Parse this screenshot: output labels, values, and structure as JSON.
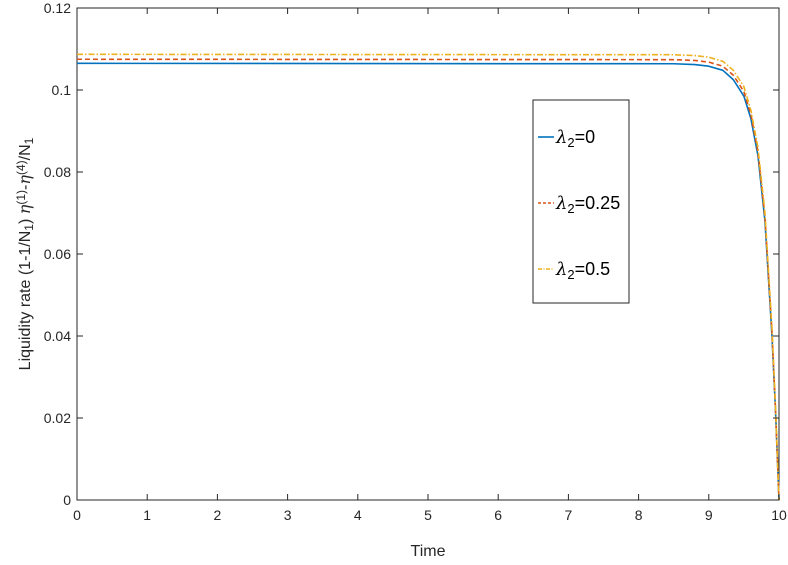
{
  "chart_data": {
    "type": "line",
    "xlabel": "Time",
    "ylabel": {
      "prefix": "Liquidity rate  (1-1/N",
      "sub1": "1",
      "mid1": ") ",
      "eta1": "η",
      "sup1": "(1)",
      "mid2": "-",
      "eta2": "η",
      "sup2": "(4)",
      "mid3": "/N",
      "sub2": "1"
    },
    "xlim": [
      0,
      10
    ],
    "ylim": [
      0,
      0.12
    ],
    "xticks": [
      0,
      1,
      2,
      3,
      4,
      5,
      6,
      7,
      8,
      9,
      10
    ],
    "yticks": [
      0,
      0.02,
      0.04,
      0.06,
      0.08,
      0.1,
      0.12
    ],
    "xtick_labels": [
      "0",
      "1",
      "2",
      "3",
      "4",
      "5",
      "6",
      "7",
      "8",
      "9",
      "10"
    ],
    "ytick_labels": [
      "0",
      "0.02",
      "0.04",
      "0.06",
      "0.08",
      "0.1",
      "0.12"
    ],
    "grid": false,
    "legend_position": "center-right",
    "series": [
      {
        "name": "λ2=0",
        "legend_sym": "λ",
        "legend_sub": "2",
        "legend_val": "=0",
        "color": "#0072BD",
        "style": "solid",
        "plateau": 0.1065,
        "x": [
          0,
          8.5,
          8.8,
          9.0,
          9.2,
          9.35,
          9.5,
          9.6,
          9.7,
          9.8,
          9.9,
          9.95,
          10
        ],
        "y": [
          0.1065,
          0.1064,
          0.1062,
          0.1058,
          0.1048,
          0.1025,
          0.0985,
          0.093,
          0.084,
          0.068,
          0.04,
          0.022,
          0.0
        ]
      },
      {
        "name": "λ2=0.25",
        "legend_sym": "λ",
        "legend_sub": "2",
        "legend_val": "=0.25",
        "color": "#D95319",
        "style": "dashed",
        "plateau": 0.1075,
        "x": [
          0,
          8.5,
          8.8,
          9.0,
          9.2,
          9.35,
          9.5,
          9.6,
          9.7,
          9.8,
          9.9,
          9.95,
          10
        ],
        "y": [
          0.1075,
          0.1074,
          0.1072,
          0.1068,
          0.1058,
          0.1036,
          0.0996,
          0.094,
          0.085,
          0.069,
          0.041,
          0.022,
          0.0
        ]
      },
      {
        "name": "λ2=0.5",
        "legend_sym": "λ",
        "legend_sub": "2",
        "legend_val": "=0.5",
        "color": "#EDB120",
        "style": "dashdot",
        "plateau": 0.1087,
        "x": [
          0,
          8.5,
          8.8,
          9.0,
          9.2,
          9.35,
          9.5,
          9.6,
          9.7,
          9.8,
          9.9,
          9.95,
          10
        ],
        "y": [
          0.1087,
          0.1086,
          0.1084,
          0.108,
          0.107,
          0.1048,
          0.1008,
          0.095,
          0.086,
          0.07,
          0.042,
          0.023,
          0.0
        ]
      }
    ]
  }
}
